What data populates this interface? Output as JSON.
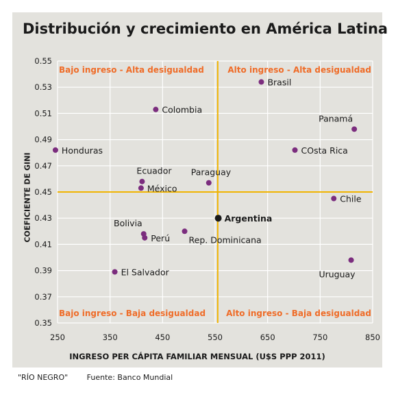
{
  "chart_data": {
    "type": "scatter",
    "title": "Distribución y crecimiento en América Latina",
    "xlabel": "INGRESO PER CÁPITA FAMILIAR MENSUAL (U$S PPP 2011)",
    "ylabel": "COEFICIENTE DE GINI",
    "xlim": [
      250,
      850
    ],
    "ylim": [
      0.35,
      0.55
    ],
    "xticks": [
      "250",
      "350",
      "450",
      "550",
      "650",
      "750",
      "850"
    ],
    "yticks": [
      "0.35",
      "0.37",
      "0.39",
      "0.41",
      "0.43",
      "0.45",
      "0.47",
      "0.49",
      "0.51",
      "0.53",
      "0.55"
    ],
    "grid": true,
    "reference_lines": {
      "x": 555,
      "y": 0.45
    },
    "quadrant_labels": {
      "top_left": "Bajo ingreso - Alta desigualdad",
      "top_right": "Alto ingreso - Alta desigualdad",
      "bottom_left": "Bajo ingreso - Baja desigualdad",
      "bottom_right": "Alto ingreso - Baja desigualdad"
    },
    "points": [
      {
        "label": "Brasil",
        "x": 638,
        "y": 0.534,
        "align": "right"
      },
      {
        "label": "Colombia",
        "x": 437,
        "y": 0.513,
        "align": "right"
      },
      {
        "label": "Panamá",
        "x": 815,
        "y": 0.498,
        "align": "above-left"
      },
      {
        "label": "Honduras",
        "x": 246,
        "y": 0.482,
        "align": "right"
      },
      {
        "label": "COsta Rica",
        "x": 702,
        "y": 0.482,
        "align": "right"
      },
      {
        "label": "Ecuador",
        "x": 411,
        "y": 0.458,
        "align": "above"
      },
      {
        "label": "México",
        "x": 409,
        "y": 0.453,
        "align": "right"
      },
      {
        "label": "Paraguay",
        "x": 538,
        "y": 0.457,
        "align": "above"
      },
      {
        "label": "Chile",
        "x": 776,
        "y": 0.445,
        "align": "right"
      },
      {
        "label": "Argentina",
        "x": 556,
        "y": 0.43,
        "align": "right",
        "highlight": true
      },
      {
        "label": "Bolivia",
        "x": 414,
        "y": 0.418,
        "align": "above-left"
      },
      {
        "label": "Perú",
        "x": 416,
        "y": 0.415,
        "align": "right"
      },
      {
        "label": "Rep. Dominicana",
        "x": 492,
        "y": 0.42,
        "align": "below-right"
      },
      {
        "label": "El Salvador",
        "x": 359,
        "y": 0.389,
        "align": "right"
      },
      {
        "label": "Uruguay",
        "x": 809,
        "y": 0.398,
        "align": "below-left"
      }
    ],
    "colors": {
      "point": "#7b2d7e",
      "highlight": "#1a1a1a",
      "reference_line": "#f0b400",
      "quadrant_text": "#ef6c28",
      "grid": "#ffffff",
      "background": "#e3e2dd"
    }
  },
  "footer": {
    "brand": "\"RÍO NEGRO\"",
    "source": "Fuente: Banco Mundial"
  }
}
